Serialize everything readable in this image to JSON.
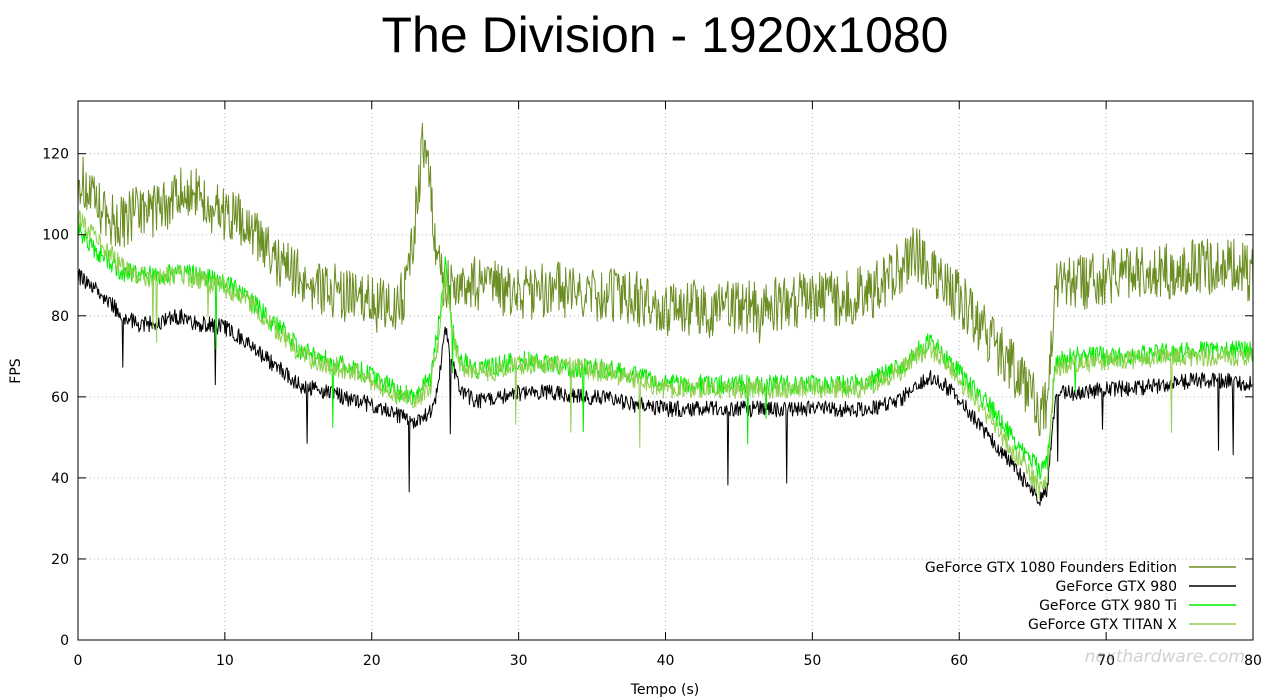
{
  "chart_data": {
    "type": "line",
    "title": "The Division - 1920x1080",
    "xlabel": "Tempo (s)",
    "ylabel": "FPS",
    "xlim": [
      0,
      80
    ],
    "ylim": [
      0,
      133
    ],
    "xticks": [
      0,
      10,
      20,
      30,
      40,
      50,
      60,
      70,
      80
    ],
    "yticks": [
      0,
      20,
      40,
      60,
      80,
      100,
      120
    ],
    "grid": true,
    "legend_position": "bottom-right",
    "series": [
      {
        "name": "GeForce GTX 1080 Founders Edition",
        "color": "#6b8e23",
        "noise": 7,
        "x": [
          0,
          1,
          2,
          3,
          4,
          5,
          6,
          7,
          8,
          9,
          10,
          11,
          12,
          13,
          14,
          15,
          16,
          17,
          18,
          19,
          20,
          21,
          22,
          22.5,
          23,
          23.5,
          24,
          24.5,
          25,
          25.5,
          26,
          27,
          28,
          29,
          30,
          31,
          32,
          33,
          34,
          35,
          36,
          37,
          38,
          39,
          40,
          41,
          42,
          43,
          44,
          45,
          46,
          47,
          48,
          49,
          50,
          51,
          52,
          53,
          54,
          55,
          56,
          57,
          58,
          59,
          60,
          61,
          62,
          63,
          64,
          65,
          65.5,
          66,
          66.5,
          67,
          68,
          69,
          70,
          71,
          72,
          73,
          74,
          75,
          76,
          77,
          78,
          79,
          80
        ],
        "y": [
          115,
          108,
          104,
          103,
          105,
          106,
          108,
          110,
          110,
          108,
          105,
          103,
          100,
          95,
          92,
          90,
          88,
          87,
          85,
          84,
          83,
          82,
          84,
          90,
          105,
          125,
          110,
          95,
          88,
          87,
          87,
          88,
          87,
          86,
          86,
          86,
          87,
          86,
          85,
          85,
          85,
          84,
          84,
          83,
          82,
          82,
          82,
          81,
          82,
          82,
          82,
          83,
          83,
          84,
          84,
          84,
          84,
          85,
          86,
          88,
          92,
          96,
          92,
          88,
          84,
          80,
          75,
          70,
          65,
          60,
          57,
          58,
          85,
          88,
          88,
          89,
          89,
          90,
          90,
          91,
          91,
          91,
          92,
          92,
          92,
          92,
          90
        ]
      },
      {
        "name": "GeForce GTX 980",
        "color": "#000000",
        "noise": 2,
        "x": [
          0,
          1,
          2,
          3,
          4,
          5,
          6,
          7,
          8,
          9,
          10,
          11,
          12,
          13,
          14,
          15,
          16,
          17,
          18,
          19,
          20,
          21,
          22,
          23,
          24,
          24.5,
          25,
          25.5,
          26,
          27,
          28,
          30,
          32,
          34,
          36,
          38,
          40,
          42,
          44,
          46,
          48,
          50,
          52,
          53,
          54,
          55,
          56,
          57,
          58,
          59,
          60,
          61,
          62,
          63,
          64,
          65,
          65.5,
          66,
          66.5,
          67,
          68,
          70,
          72,
          74,
          76,
          78,
          80
        ],
        "y": [
          90,
          87,
          84,
          80,
          78,
          78,
          79,
          80,
          78,
          78,
          77,
          75,
          72,
          69,
          66,
          63,
          62,
          61,
          60,
          59,
          58,
          57,
          55,
          54,
          56,
          62,
          77,
          68,
          62,
          59,
          59,
          61,
          61,
          60,
          60,
          58,
          57,
          57,
          57,
          57,
          57,
          57,
          57,
          57,
          57,
          58,
          59,
          63,
          65,
          63,
          59,
          55,
          50,
          46,
          41,
          37,
          35,
          37,
          58,
          61,
          61,
          62,
          62,
          63,
          64,
          64,
          63
        ]
      },
      {
        "name": "GeForce GTX 980 Ti",
        "color": "#00ee00",
        "noise": 2.5,
        "x": [
          0,
          1,
          2,
          3,
          4,
          5,
          6,
          7,
          8,
          9,
          10,
          11,
          12,
          13,
          14,
          15,
          16,
          17,
          18,
          19,
          20,
          21,
          22,
          23,
          24,
          24.5,
          25,
          25.5,
          26,
          27,
          28,
          30,
          32,
          34,
          36,
          38,
          40,
          42,
          44,
          46,
          48,
          50,
          52,
          53,
          54,
          55,
          56,
          57,
          58,
          59,
          60,
          61,
          62,
          63,
          64,
          65,
          65.5,
          66,
          66.5,
          67,
          68,
          70,
          72,
          74,
          76,
          78,
          80
        ],
        "y": [
          101,
          97,
          94,
          91,
          90,
          90,
          90,
          91,
          90,
          89,
          88,
          86,
          83,
          79,
          76,
          72,
          70,
          69,
          68,
          67,
          65,
          63,
          61,
          60,
          65,
          76,
          93,
          78,
          69,
          67,
          67,
          69,
          68,
          67,
          67,
          65,
          63,
          63,
          63,
          63,
          63,
          63,
          63,
          63,
          64,
          66,
          67,
          71,
          74,
          70,
          66,
          62,
          58,
          53,
          48,
          44,
          42,
          44,
          67,
          69,
          70,
          70,
          70,
          71,
          71,
          72,
          71
        ]
      },
      {
        "name": "GeForce GTX TITAN X",
        "color": "#92d050",
        "noise": 2.5,
        "x": [
          0,
          1,
          2,
          3,
          4,
          5,
          6,
          7,
          8,
          9,
          10,
          11,
          12,
          13,
          14,
          15,
          16,
          17,
          18,
          19,
          20,
          21,
          22,
          23,
          24,
          24.5,
          25,
          25.5,
          26,
          27,
          28,
          30,
          32,
          34,
          36,
          38,
          40,
          42,
          44,
          46,
          48,
          50,
          52,
          53,
          54,
          55,
          56,
          57,
          58,
          59,
          60,
          61,
          62,
          63,
          64,
          65,
          65.5,
          66,
          66.5,
          67,
          68,
          70,
          72,
          74,
          76,
          78,
          80
        ],
        "y": [
          104,
          100,
          96,
          92,
          90,
          89,
          90,
          90,
          89,
          88,
          87,
          85,
          82,
          78,
          75,
          71,
          69,
          68,
          67,
          66,
          64,
          62,
          60,
          59,
          63,
          73,
          90,
          76,
          68,
          66,
          66,
          68,
          68,
          67,
          66,
          64,
          62,
          62,
          62,
          62,
          62,
          62,
          62,
          62,
          63,
          65,
          66,
          70,
          72,
          69,
          64,
          60,
          55,
          50,
          45,
          40,
          37,
          40,
          66,
          68,
          68,
          69,
          69,
          70,
          70,
          70,
          70
        ]
      }
    ]
  },
  "watermark": "nexthardware.com"
}
